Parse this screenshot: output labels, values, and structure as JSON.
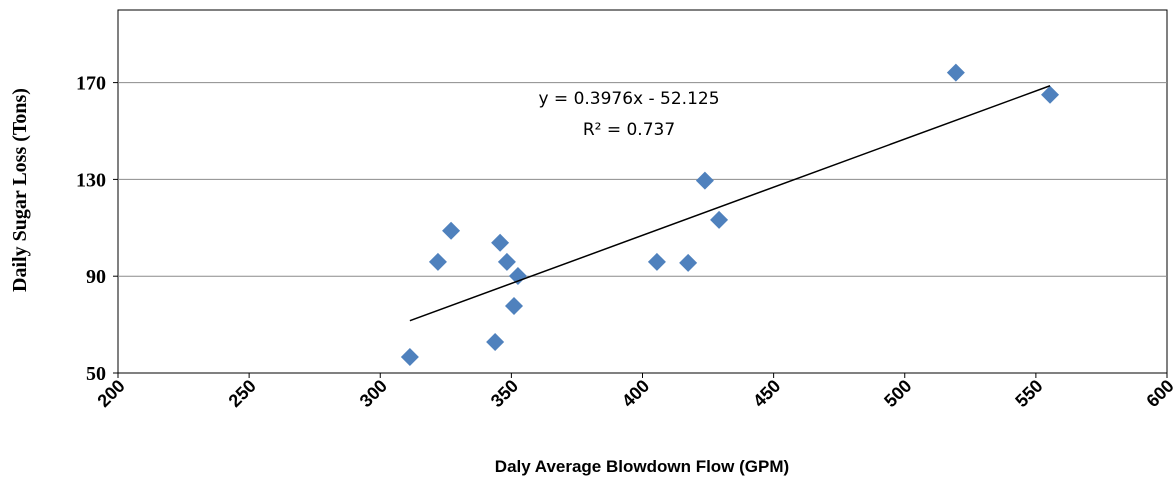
{
  "chart_data": {
    "type": "scatter",
    "x_label": "Daly Average Blowdown Flow (GPM)",
    "y_label": "Daily  Sugar Loss (Tons)",
    "series": [
      {
        "name": "Daily Sugar Loss",
        "color": "#4f81bd",
        "x": [
          311.3,
          327,
          322,
          345.7,
          348.3,
          352.5,
          351,
          343.8,
          405.5,
          417.4,
          423.8,
          429.2,
          519.5,
          555.4
        ],
        "values": [
          56.6,
          108.8,
          95.9,
          103.8,
          95.9,
          90.1,
          77.7,
          62.8,
          95.9,
          95.5,
          129.5,
          113.3,
          174.1,
          165
        ]
      }
    ],
    "trendline": {
      "color": "#000000",
      "x": [
        311.3,
        555.4
      ],
      "values": [
        71.6,
        168.7
      ],
      "equation": "y = 0.3976x - 52.125",
      "r_squared": "R² = 0.737"
    },
    "xlim": [
      200,
      600
    ],
    "xticks": [
      200,
      250,
      300,
      350,
      400,
      450,
      500,
      550,
      600
    ],
    "ylim": [
      50,
      200
    ],
    "yticks": [
      50,
      90,
      130,
      170
    ],
    "grid": true
  }
}
